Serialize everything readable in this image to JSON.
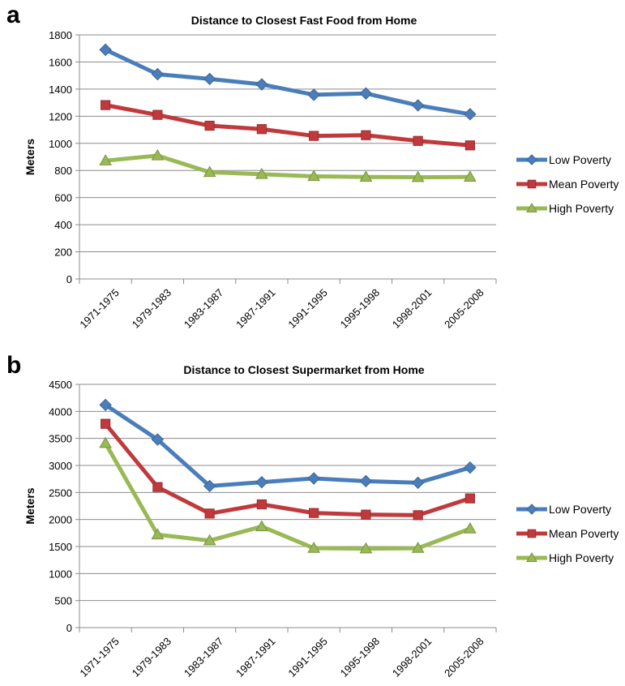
{
  "panels": [
    {
      "letter": "a"
    },
    {
      "letter": "b"
    }
  ],
  "chart_data": [
    {
      "type": "line",
      "title": "Distance to Closest Fast Food from Home",
      "xlabel": "",
      "ylabel": "Meters",
      "ylim": [
        0,
        1800
      ],
      "yticks": [
        0,
        200,
        400,
        600,
        800,
        1000,
        1200,
        1400,
        1600,
        1800
      ],
      "grid": true,
      "legend_position": "right",
      "categories": [
        "1971-1975",
        "1979-1983",
        "1983-1987",
        "1987-1991",
        "1991-1995",
        "1995-1998",
        "1998-2001",
        "2005-2008"
      ],
      "series": [
        {
          "name": "Low Poverty",
          "color": "#4a7ebb",
          "marker": "diamond",
          "values": [
            1690,
            1510,
            1475,
            1435,
            1358,
            1368,
            1280,
            1215
          ]
        },
        {
          "name": "Mean Poverty",
          "color": "#c0393c",
          "marker": "square",
          "values": [
            1282,
            1210,
            1130,
            1105,
            1055,
            1060,
            1018,
            985
          ]
        },
        {
          "name": "High Poverty",
          "color": "#98b954",
          "marker": "triangle",
          "values": [
            872,
            910,
            787,
            772,
            757,
            752,
            750,
            752
          ]
        }
      ]
    },
    {
      "type": "line",
      "title": "Distance to Closest Supermarket from Home",
      "xlabel": "",
      "ylabel": "Meters",
      "ylim": [
        0,
        4500
      ],
      "yticks": [
        0,
        500,
        1000,
        1500,
        2000,
        2500,
        3000,
        3500,
        4000,
        4500
      ],
      "grid": true,
      "legend_position": "right",
      "categories": [
        "1971-1975",
        "1979-1983",
        "1983-1987",
        "1987-1991",
        "1991-1995",
        "1995-1998",
        "1998-2001",
        "2005-2008"
      ],
      "series": [
        {
          "name": "Low Poverty",
          "color": "#4a7ebb",
          "marker": "diamond",
          "values": [
            4120,
            3480,
            2620,
            2690,
            2760,
            2710,
            2680,
            2960
          ]
        },
        {
          "name": "Mean Poverty",
          "color": "#c0393c",
          "marker": "square",
          "values": [
            3770,
            2600,
            2110,
            2280,
            2120,
            2090,
            2080,
            2390
          ]
        },
        {
          "name": "High Poverty",
          "color": "#98b954",
          "marker": "triangle",
          "values": [
            3410,
            1720,
            1610,
            1870,
            1470,
            1460,
            1470,
            1830
          ]
        }
      ]
    }
  ]
}
